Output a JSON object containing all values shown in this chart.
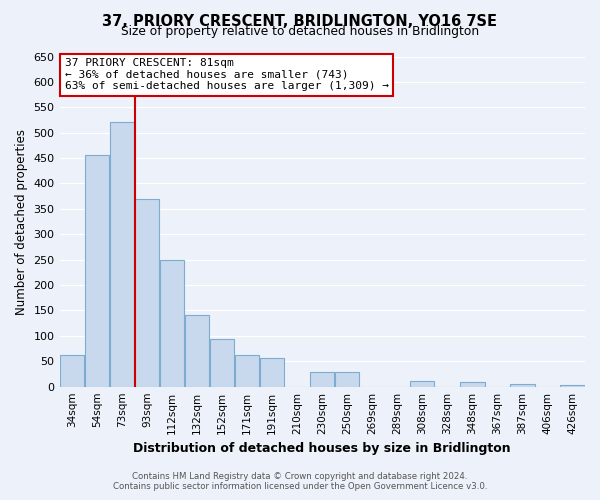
{
  "title": "37, PRIORY CRESCENT, BRIDLINGTON, YO16 7SE",
  "subtitle": "Size of property relative to detached houses in Bridlington",
  "xlabel": "Distribution of detached houses by size in Bridlington",
  "ylabel": "Number of detached properties",
  "categories": [
    "34sqm",
    "54sqm",
    "73sqm",
    "93sqm",
    "112sqm",
    "132sqm",
    "152sqm",
    "171sqm",
    "191sqm",
    "210sqm",
    "230sqm",
    "250sqm",
    "269sqm",
    "289sqm",
    "308sqm",
    "328sqm",
    "348sqm",
    "367sqm",
    "387sqm",
    "406sqm",
    "426sqm"
  ],
  "values": [
    62,
    456,
    521,
    369,
    249,
    141,
    93,
    62,
    57,
    0,
    28,
    28,
    0,
    0,
    12,
    0,
    10,
    0,
    5,
    0,
    3
  ],
  "bar_color": "#c8d9ee",
  "bar_edge_color": "#7eabd0",
  "vline_x_index": 2.5,
  "vline_color": "#cc0000",
  "ylim": [
    0,
    650
  ],
  "yticks": [
    0,
    50,
    100,
    150,
    200,
    250,
    300,
    350,
    400,
    450,
    500,
    550,
    600,
    650
  ],
  "annotation_title": "37 PRIORY CRESCENT: 81sqm",
  "annotation_line1": "← 36% of detached houses are smaller (743)",
  "annotation_line2": "63% of semi-detached houses are larger (1,309) →",
  "annotation_box_color": "#ffffff",
  "annotation_box_edge": "#cc0000",
  "footer_line1": "Contains HM Land Registry data © Crown copyright and database right 2024.",
  "footer_line2": "Contains public sector information licensed under the Open Government Licence v3.0.",
  "background_color": "#edf1f9",
  "plot_bg_color": "#edf1f9",
  "grid_color": "#ffffff"
}
